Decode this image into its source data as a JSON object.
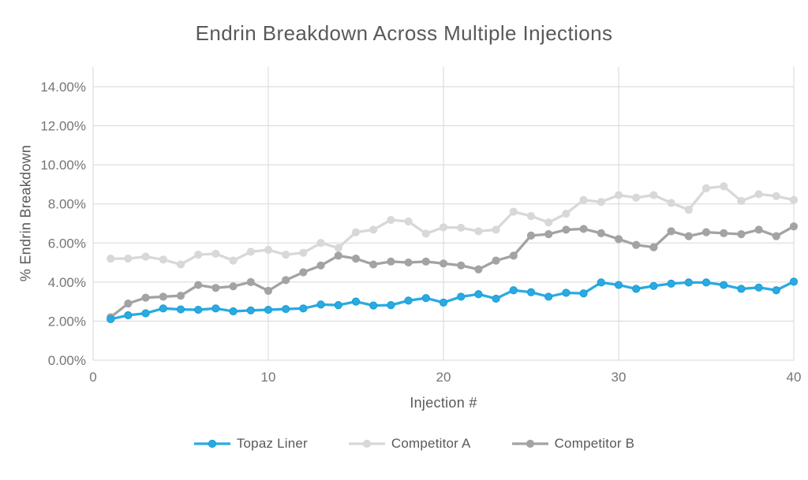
{
  "chart_data": {
    "type": "line",
    "title": "Endrin Breakdown Across Multiple Injections",
    "xlabel": "Injection #",
    "ylabel": "% Endrin Breakdown",
    "xlim": [
      0,
      40
    ],
    "ylim": [
      0,
      14
    ],
    "grid": true,
    "legend_position": "bottom",
    "xticks": {
      "values": [
        0,
        10,
        20,
        30,
        40
      ],
      "labels": [
        "0",
        "10",
        "20",
        "30",
        "40"
      ]
    },
    "yticks": {
      "values": [
        0,
        2,
        4,
        6,
        8,
        10,
        12,
        14
      ],
      "labels": [
        "0.00%",
        "2.00%",
        "4.00%",
        "6.00%",
        "8.00%",
        "10.00%",
        "12.00%",
        "14.00%"
      ]
    },
    "x": [
      1,
      2,
      3,
      4,
      5,
      6,
      7,
      8,
      9,
      10,
      11,
      12,
      13,
      14,
      15,
      16,
      17,
      18,
      19,
      20,
      21,
      22,
      23,
      24,
      25,
      26,
      27,
      28,
      29,
      30,
      31,
      32,
      33,
      34,
      35,
      36,
      37,
      38,
      39,
      40
    ],
    "series": [
      {
        "name": "Topaz Liner",
        "color": "#29ABE2",
        "marker_stroke": "#189BD6",
        "values": [
          2.1,
          2.3,
          2.4,
          2.65,
          2.6,
          2.58,
          2.65,
          2.5,
          2.55,
          2.58,
          2.62,
          2.65,
          2.85,
          2.82,
          3.0,
          2.8,
          2.82,
          3.05,
          3.18,
          2.95,
          3.25,
          3.38,
          3.15,
          3.58,
          3.48,
          3.25,
          3.45,
          3.42,
          3.98,
          3.85,
          3.65,
          3.8,
          3.92,
          3.98,
          3.98,
          3.85,
          3.65,
          3.72,
          3.58,
          4.02
        ]
      },
      {
        "name": "Competitor A",
        "color": "#D8D8D8",
        "marker_stroke": "#D8D8D8",
        "values": [
          5.2,
          5.2,
          5.3,
          5.15,
          4.9,
          5.4,
          5.45,
          5.1,
          5.55,
          5.65,
          5.4,
          5.5,
          6.0,
          5.75,
          6.55,
          6.68,
          7.18,
          7.1,
          6.48,
          6.8,
          6.78,
          6.6,
          6.68,
          7.6,
          7.38,
          7.05,
          7.5,
          8.2,
          8.1,
          8.45,
          8.32,
          8.45,
          8.05,
          7.7,
          8.8,
          8.9,
          8.15,
          8.5,
          8.4,
          8.2
        ]
      },
      {
        "name": "Competitor B",
        "color": "#A3A3A3",
        "marker_stroke": "#A3A3A3",
        "values": [
          2.2,
          2.9,
          3.2,
          3.25,
          3.3,
          3.85,
          3.7,
          3.78,
          4.0,
          3.55,
          4.1,
          4.5,
          4.85,
          5.35,
          5.2,
          4.9,
          5.05,
          5.0,
          5.05,
          4.95,
          4.85,
          4.65,
          5.1,
          5.35,
          6.38,
          6.45,
          6.68,
          6.72,
          6.5,
          6.2,
          5.9,
          5.78,
          6.6,
          6.35,
          6.55,
          6.5,
          6.45,
          6.68,
          6.35,
          6.85
        ]
      }
    ],
    "grid_color": "#D7D7D7",
    "tick_text_color": "#757575",
    "label_text_color": "#595959"
  }
}
